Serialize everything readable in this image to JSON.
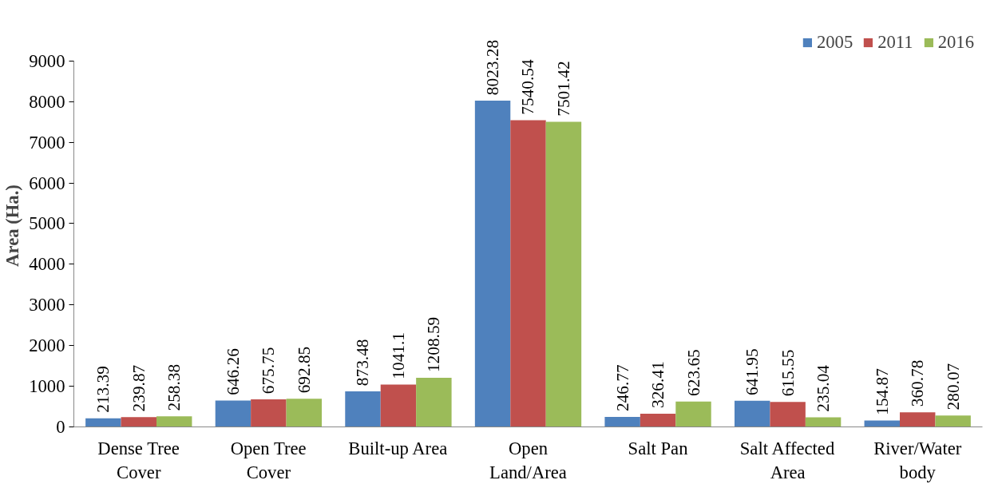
{
  "chart_data": {
    "type": "bar",
    "ylabel": "Area (Ha.)",
    "categories": [
      "Dense Tree\nCover",
      "Open Tree\nCover",
      "Built-up Area",
      "Open\nLand/Area",
      "Salt Pan",
      "Salt Affected\nArea",
      "River/Water\nbody"
    ],
    "series": [
      {
        "name": "2005",
        "color": "#4f81bd",
        "values": [
          213.39,
          646.26,
          873.48,
          8023.28,
          246.77,
          641.95,
          154.87
        ]
      },
      {
        "name": "2011",
        "color": "#c0504d",
        "values": [
          239.87,
          675.75,
          1041.1,
          7540.54,
          326.41,
          615.55,
          360.78
        ]
      },
      {
        "name": "2016",
        "color": "#9bbb59",
        "values": [
          258.38,
          692.85,
          1208.59,
          7501.42,
          623.65,
          235.04,
          280.07
        ]
      }
    ],
    "ylim": [
      0,
      9000
    ],
    "yticks": [
      0,
      1000,
      2000,
      3000,
      4000,
      5000,
      6000,
      7000,
      8000,
      9000
    ],
    "data_labels": true,
    "grid": false,
    "legend": "top right"
  }
}
